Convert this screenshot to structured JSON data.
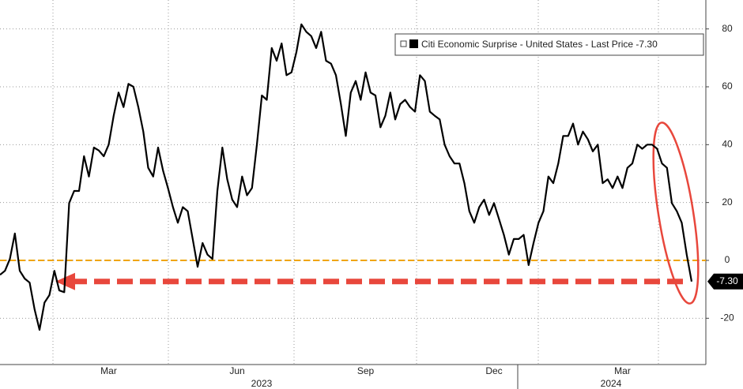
{
  "chart_data": {
    "type": "line",
    "categories": [
      null,
      null,
      null,
      null,
      null,
      null,
      null,
      null,
      null,
      null,
      null,
      null,
      null,
      null,
      null,
      null,
      null,
      null,
      null,
      null,
      null,
      null,
      "Mar",
      null,
      null,
      null,
      null,
      null,
      null,
      null,
      null,
      null,
      null,
      null,
      null,
      null,
      null,
      null,
      null,
      null,
      null,
      null,
      null,
      null,
      null,
      null,
      null,
      null,
      "Jun",
      null,
      null,
      null,
      null,
      null,
      null,
      null,
      null,
      null,
      null,
      null,
      null,
      null,
      null,
      null,
      null,
      null,
      null,
      null,
      null,
      null,
      null,
      null,
      null,
      null,
      "Sep",
      null,
      null,
      null,
      null,
      null,
      null,
      null,
      null,
      null,
      null,
      null,
      null,
      null,
      null,
      null,
      null,
      null,
      null,
      null,
      null,
      null,
      null,
      null,
      null,
      null,
      "Dec",
      null,
      null,
      null,
      null,
      null,
      null,
      null,
      null,
      null,
      null,
      null,
      null,
      null,
      null,
      null,
      null,
      null,
      null,
      null,
      null,
      null,
      null,
      null,
      null,
      null,
      "Mar",
      null,
      null,
      null,
      null,
      null,
      null,
      null,
      null,
      null,
      null,
      null,
      null,
      null,
      null
    ],
    "year_labels": [
      "2023",
      "2024"
    ],
    "series": [
      {
        "name": "Citi Economic Surprise - United States - Last Price -7.30",
        "color": "#000000",
        "values": [
          -5,
          -3.6,
          0.5,
          9.3,
          -3.6,
          -6.3,
          -7.7,
          -17,
          -24,
          -14.6,
          -12,
          -3.6,
          -10.4,
          -11,
          19.8,
          24,
          24,
          36,
          29,
          39,
          38,
          36,
          40,
          50,
          58,
          53,
          61,
          60,
          53,
          44.5,
          32,
          29,
          39,
          31,
          25,
          18.4,
          13,
          18.4,
          17,
          7.4,
          -2.2,
          6,
          2,
          0.5,
          24,
          39,
          28,
          21,
          18.4,
          29,
          22.5,
          25,
          40,
          57,
          55.5,
          73.4,
          69,
          75,
          64,
          65,
          72,
          81.6,
          79,
          77.5,
          73.4,
          79,
          69,
          68,
          64,
          54,
          43,
          58,
          62,
          55.5,
          65,
          58,
          57,
          46,
          50,
          58,
          48.7,
          54,
          55.5,
          53,
          51.4,
          64,
          62,
          51.4,
          50,
          48.7,
          40,
          36,
          33.5,
          33.5,
          26.7,
          17,
          13,
          18.4,
          21,
          15.7,
          19.8,
          14.3,
          8.8,
          2,
          7.4,
          7.4,
          8.8,
          -1.6,
          6,
          13,
          17,
          29,
          26.7,
          33.5,
          43,
          43,
          47.3,
          40,
          44.5,
          41.8,
          37.7,
          40,
          26.7,
          28,
          25,
          29,
          25,
          32,
          33.5,
          40,
          38.6,
          40,
          40,
          38.6,
          33.5,
          32,
          19.8,
          17,
          13,
          2,
          -7.3
        ]
      }
    ],
    "last_price_label": "-7.30",
    "reference_line": {
      "value": 0,
      "color": "#f0a500"
    },
    "arrow": {
      "value": -7.3,
      "color": "#e8473c"
    },
    "ylim": [
      -36,
      90
    ],
    "yticks": [
      -20,
      0,
      20,
      40,
      60,
      80
    ],
    "grid": true
  }
}
